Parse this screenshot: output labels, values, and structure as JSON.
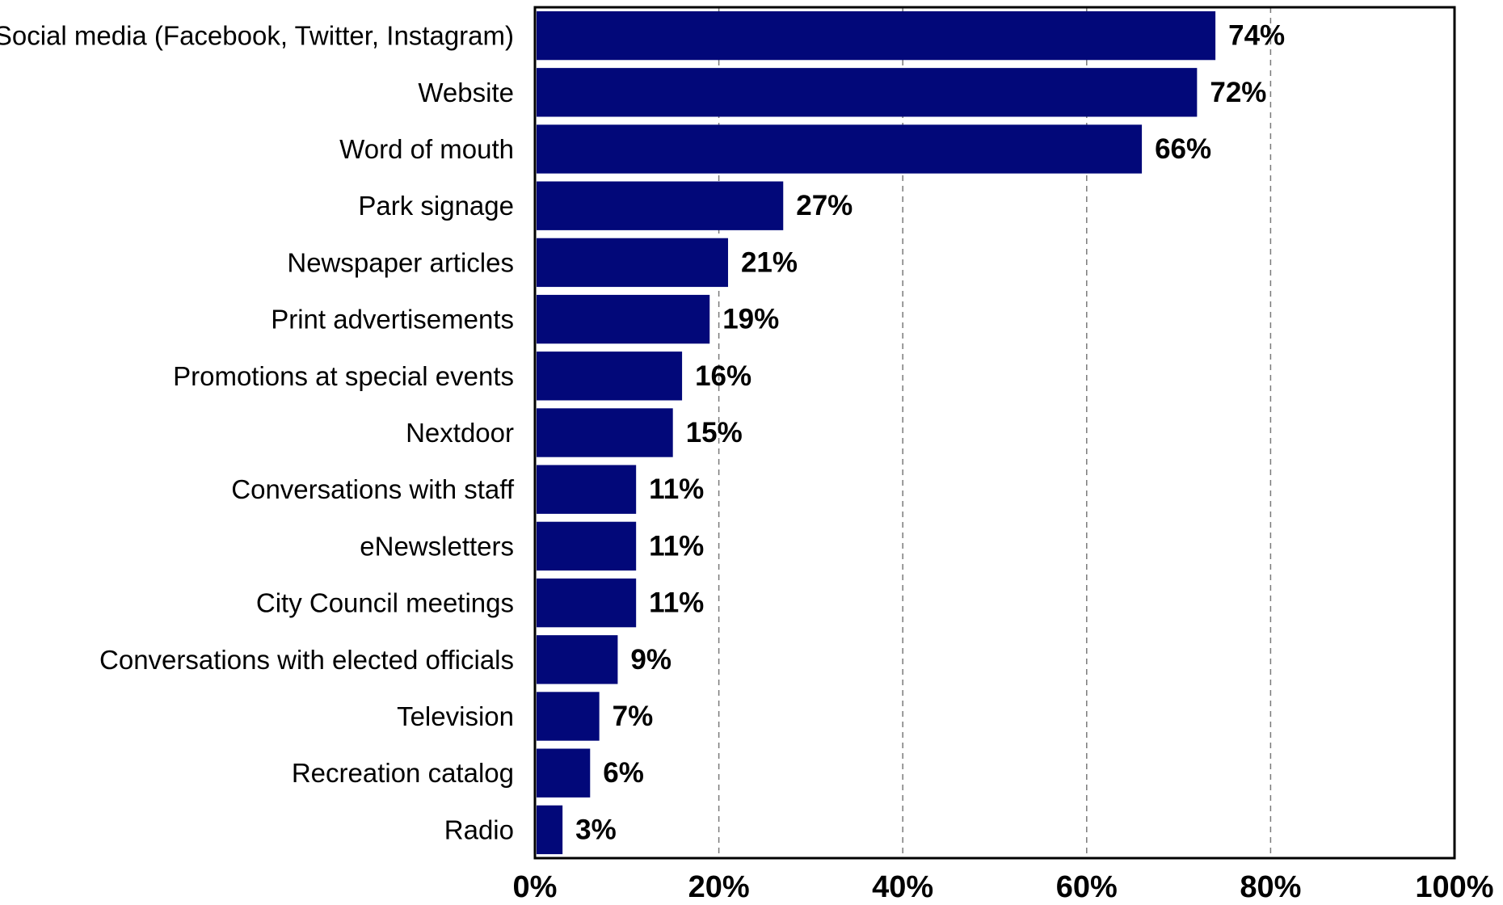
{
  "chart_data": {
    "type": "bar",
    "orientation": "horizontal",
    "title": "",
    "xlabel": "",
    "ylabel": "",
    "categories": [
      "Social media (Facebook, Twitter, Instagram)",
      "Website",
      "Word of mouth",
      "Park signage",
      "Newspaper articles",
      "Print advertisements",
      "Promotions at special events",
      "Nextdoor",
      "Conversations with staff",
      "eNewsletters",
      "City Council meetings",
      "Conversations with elected officials",
      "Television",
      "Recreation catalog",
      "Radio"
    ],
    "values": [
      74,
      72,
      66,
      27,
      21,
      19,
      16,
      15,
      11,
      11,
      11,
      9,
      7,
      6,
      3
    ],
    "value_labels": [
      "74%",
      "72%",
      "66%",
      "27%",
      "21%",
      "19%",
      "16%",
      "15%",
      "11%",
      "11%",
      "11%",
      "9%",
      "7%",
      "6%",
      "3%"
    ],
    "xlim": [
      0,
      100
    ],
    "xticks": [
      0,
      20,
      40,
      60,
      80,
      100
    ],
    "xtick_labels": [
      "0%",
      "20%",
      "40%",
      "60%",
      "80%",
      "100%"
    ],
    "grid": "vertical dashed",
    "legend": "none",
    "bar_color": "#020879"
  }
}
